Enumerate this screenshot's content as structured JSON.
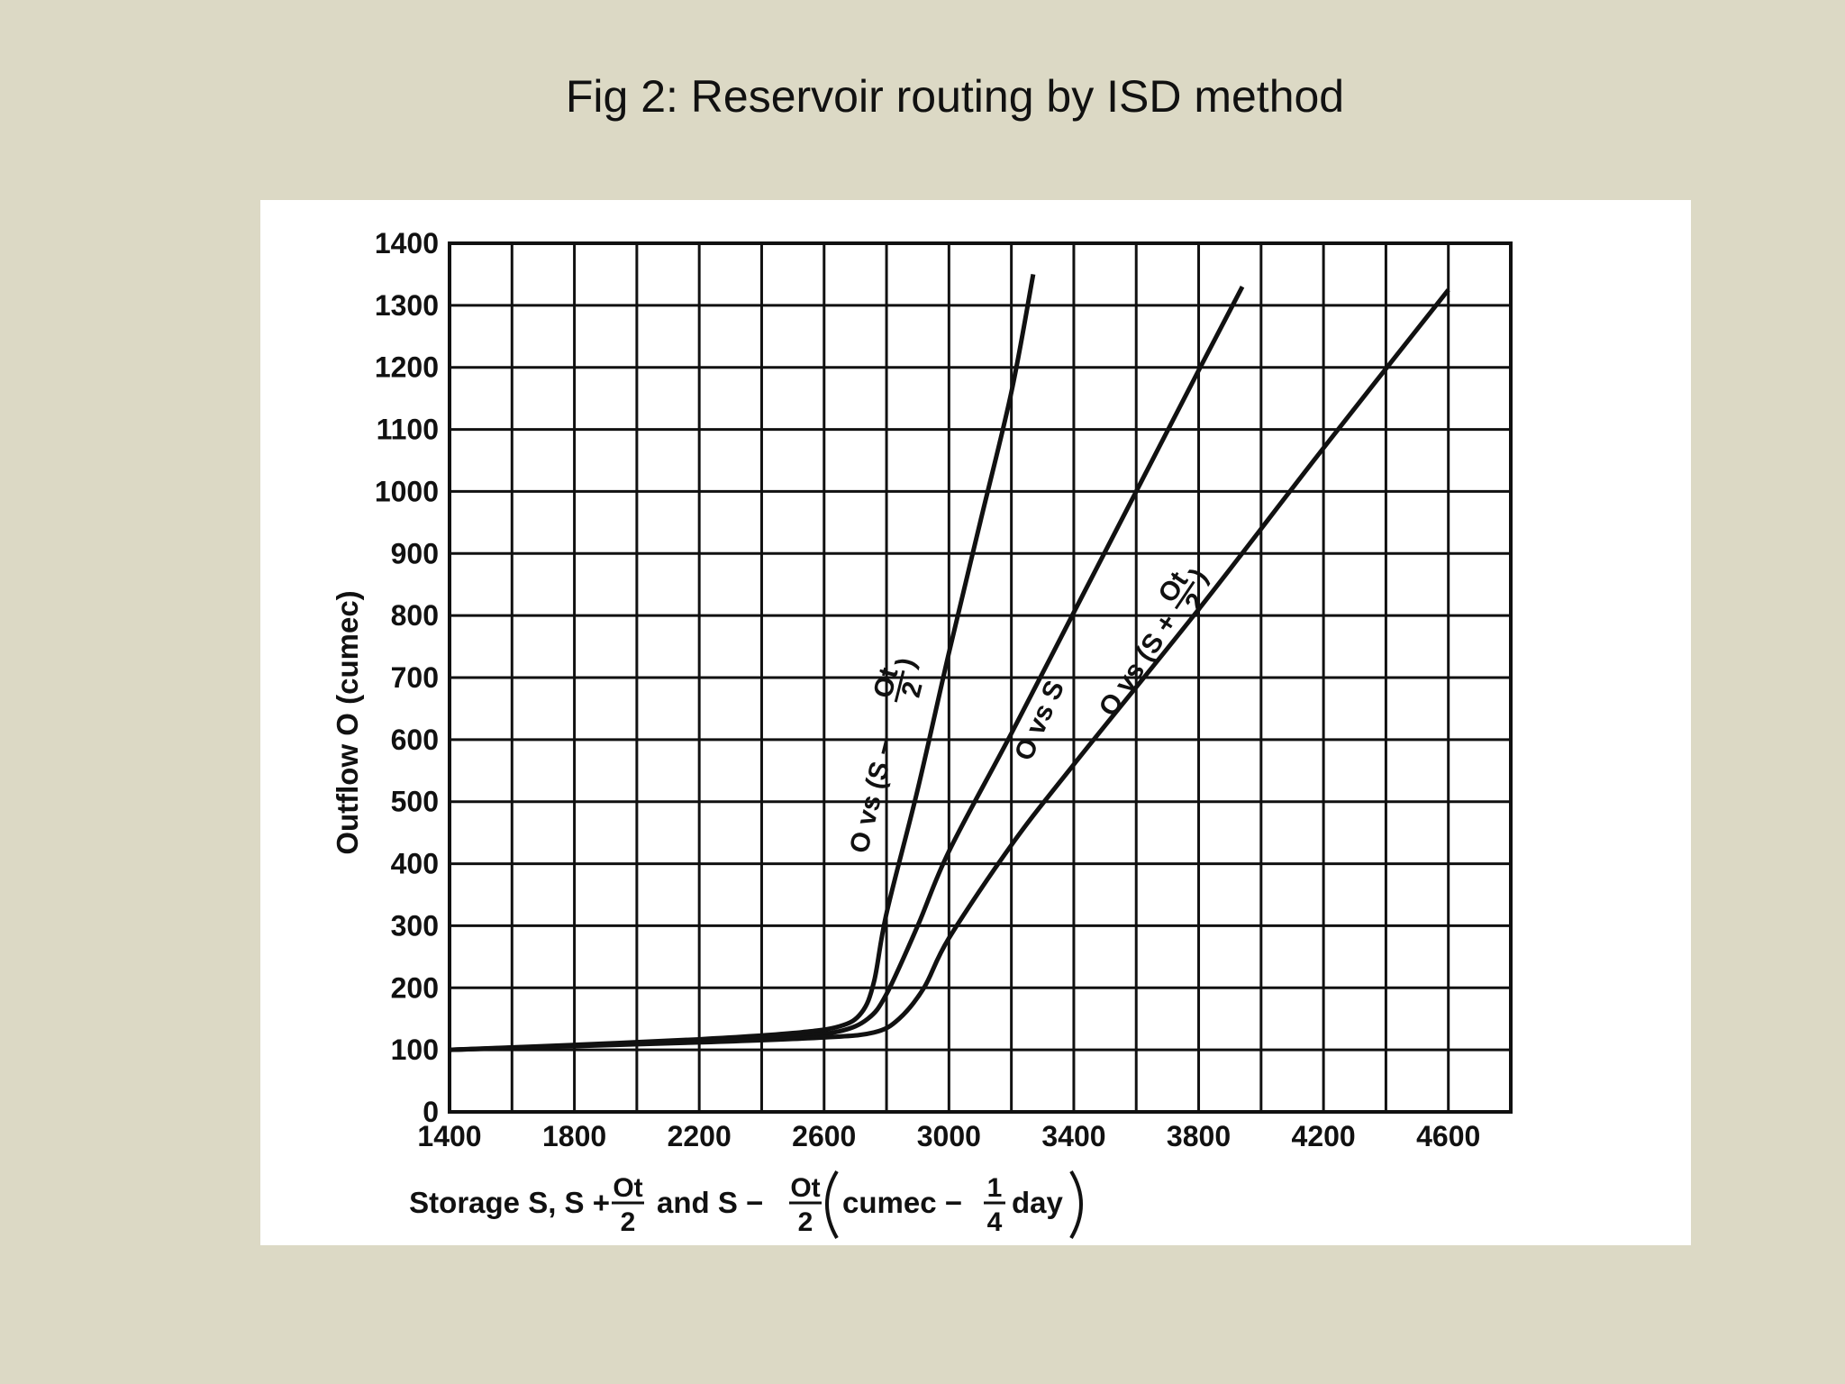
{
  "slide": {
    "title": "Fig 2: Reservoir routing by ISD method"
  },
  "chart_data": {
    "type": "line",
    "xlabel": {
      "prefix": "Storage S, S +",
      "frac1_num": "Ot",
      "frac1_den": "2",
      "middle": "and S −",
      "frac2_num": "Ot",
      "frac2_den": "2",
      "unit_prefix": "cumec −",
      "frac3_num": "1",
      "frac3_den": "4",
      "unit_suffix": "day"
    },
    "ylabel": "Outflow O (cumec)",
    "xlim": [
      1400,
      4800
    ],
    "ylim": [
      0,
      1400
    ],
    "x_ticks": [
      1400,
      1800,
      2200,
      2600,
      3000,
      3400,
      3800,
      4200,
      4600
    ],
    "y_ticks": [
      0,
      100,
      200,
      300,
      400,
      500,
      600,
      700,
      800,
      900,
      1000,
      1100,
      1200,
      1300,
      1400
    ],
    "grid": true,
    "series": [
      {
        "name": "O vs (S − Ot/2)",
        "label_main": "O vs (S −",
        "label_num": "Ot",
        "label_den": "2",
        "label_close": ")",
        "points": [
          [
            1400,
            100
          ],
          [
            1800,
            108
          ],
          [
            2200,
            117
          ],
          [
            2500,
            127
          ],
          [
            2650,
            138
          ],
          [
            2720,
            160
          ],
          [
            2760,
            210
          ],
          [
            2800,
            320
          ],
          [
            2900,
            520
          ],
          [
            3000,
            740
          ],
          [
            3100,
            950
          ],
          [
            3200,
            1160
          ],
          [
            3270,
            1350
          ]
        ]
      },
      {
        "name": "O vs S",
        "label_main": "O vs S",
        "points": [
          [
            1400,
            100
          ],
          [
            1800,
            107
          ],
          [
            2200,
            115
          ],
          [
            2500,
            122
          ],
          [
            2650,
            130
          ],
          [
            2740,
            150
          ],
          [
            2800,
            190
          ],
          [
            2900,
            300
          ],
          [
            3000,
            420
          ],
          [
            3200,
            610
          ],
          [
            3400,
            805
          ],
          [
            3600,
            1000
          ],
          [
            3800,
            1195
          ],
          [
            3940,
            1330
          ]
        ]
      },
      {
        "name": "O vs (S + Ot/2)",
        "label_main": "O vs (S +",
        "label_num": "Ot",
        "label_den": "2",
        "label_close": ")",
        "points": [
          [
            1400,
            100
          ],
          [
            1800,
            106
          ],
          [
            2200,
            112
          ],
          [
            2600,
            120
          ],
          [
            2760,
            128
          ],
          [
            2840,
            150
          ],
          [
            2920,
            200
          ],
          [
            3000,
            280
          ],
          [
            3200,
            430
          ],
          [
            3400,
            560
          ],
          [
            3800,
            810
          ],
          [
            4200,
            1070
          ],
          [
            4600,
            1325
          ]
        ]
      }
    ]
  }
}
